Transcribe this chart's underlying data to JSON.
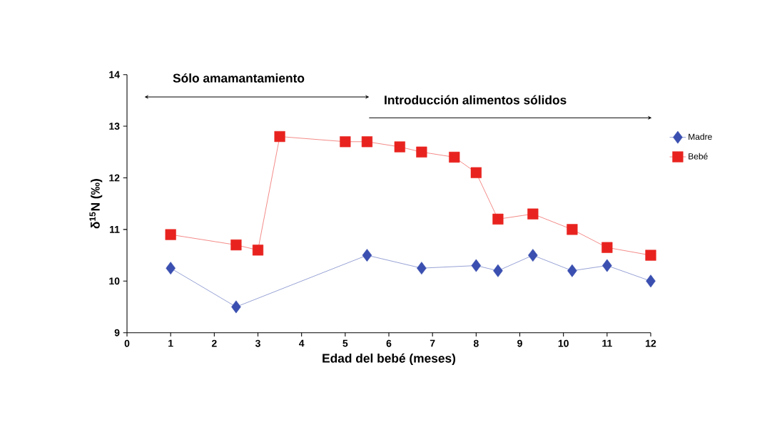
{
  "chart_data": {
    "type": "line",
    "xlabel": "Edad del bebé (meses)",
    "ylabel": "δ$^{15}$N (‰)",
    "xlim": [
      0,
      12
    ],
    "xticks": [
      0,
      1,
      2,
      3,
      4,
      5,
      6,
      7,
      8,
      9,
      10,
      11,
      12
    ],
    "ylim": [
      9,
      14
    ],
    "yticks": [
      9,
      10,
      11,
      12,
      13,
      14
    ],
    "legend": "right",
    "grid": false,
    "annotations": [
      "Sólo amamantamiento",
      "Introducción alimentos sólidos"
    ],
    "series": [
      {
        "name": "Madre",
        "color": "#3a4fb0",
        "marker": "diamond",
        "x": [
          1,
          2.5,
          5.5,
          6.75,
          8,
          8.5,
          9.3,
          10.2,
          11,
          12
        ],
        "values": [
          10.25,
          9.5,
          10.5,
          10.25,
          10.3,
          10.2,
          10.5,
          10.2,
          10.3,
          10.0
        ]
      },
      {
        "name": "Bebé",
        "color": "#e8231f",
        "marker": "square",
        "x": [
          1,
          2.5,
          3,
          3.5,
          5,
          5.5,
          6.25,
          6.75,
          7.5,
          8,
          8.5,
          9.3,
          10.2,
          11,
          12
        ],
        "values": [
          10.9,
          10.7,
          10.6,
          12.8,
          12.7,
          12.7,
          12.6,
          12.5,
          12.4,
          12.1,
          11.2,
          11.3,
          11.0,
          10.65,
          10.5
        ]
      }
    ]
  }
}
